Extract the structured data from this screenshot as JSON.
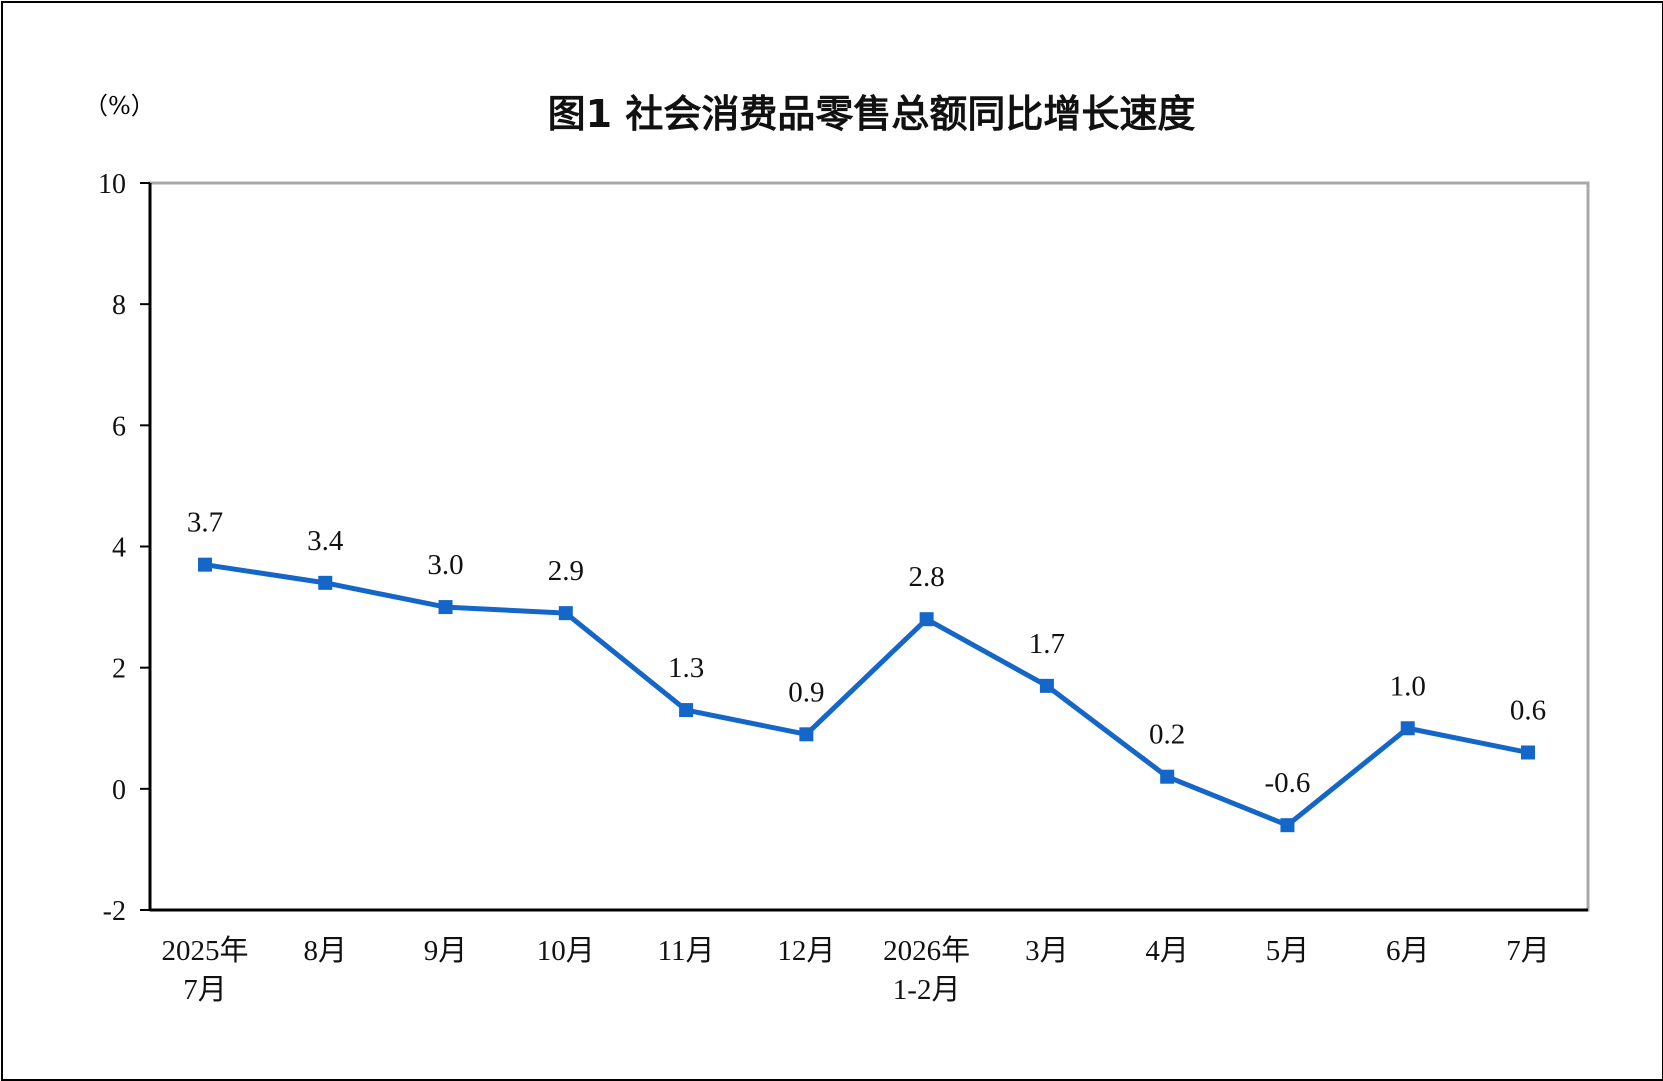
{
  "chart_data": {
    "type": "line",
    "title": "图1  社会消费品零售总额同比增长速度",
    "unit_label": "（%）",
    "categories": [
      [
        "2025年",
        "7月"
      ],
      [
        "8月"
      ],
      [
        "9月"
      ],
      [
        "10月"
      ],
      [
        "11月"
      ],
      [
        "12月"
      ],
      [
        "2026年",
        "1-2月"
      ],
      [
        "3月"
      ],
      [
        "4月"
      ],
      [
        "5月"
      ],
      [
        "6月"
      ],
      [
        "7月"
      ]
    ],
    "series": [
      {
        "values": [
          3.7,
          3.4,
          3.0,
          2.9,
          1.3,
          0.9,
          2.8,
          1.7,
          0.2,
          -0.6,
          1.0,
          0.6
        ],
        "labels": [
          "3.7",
          "3.4",
          "3.0",
          "2.9",
          "1.3",
          "0.9",
          "2.8",
          "1.7",
          "0.2",
          "-0.6",
          "1.0",
          "0.6"
        ],
        "color": "#1466c8"
      }
    ],
    "yticks": [
      "10",
      "8",
      "6",
      "4",
      "2",
      "0",
      "-2"
    ],
    "ylim": [
      -2,
      10
    ],
    "grid": false,
    "legend": "none"
  }
}
